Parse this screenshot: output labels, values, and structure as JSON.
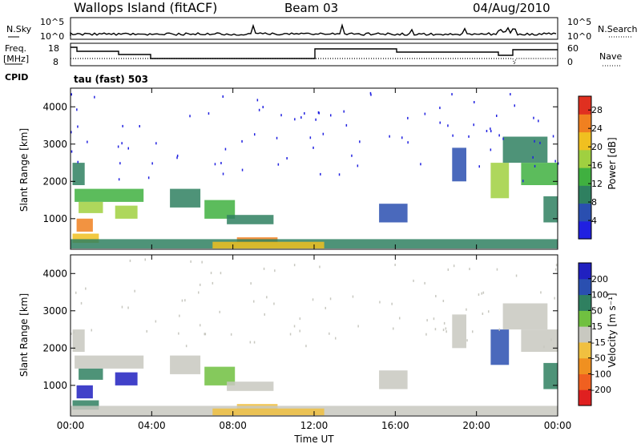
{
  "header": {
    "station": "Wallops Island (fitACF)",
    "beam": "Beam 03",
    "date": "04/Aug/2010"
  },
  "status": {
    "nsky_label": "N.Sky",
    "nsearch_label": "N.Search",
    "freq_label_line1": "Freq.",
    "freq_label_line2": "[MHz]",
    "nave_label": "Nave",
    "cpid_label": "CPID",
    "cpid_value": "tau (fast) 503",
    "nsky_ticks": [
      "10^5",
      "10^0"
    ],
    "nsearch_ticks": [
      "10^5",
      "10^0"
    ],
    "freq_ticks": [
      "18",
      "8"
    ],
    "nave_ticks": [
      "60",
      "0"
    ]
  },
  "colors": {
    "power": [
      "#2020e0",
      "#2a4fb0",
      "#2f8060",
      "#40b040",
      "#a0d040",
      "#f0c020",
      "#f08020",
      "#e03020"
    ],
    "velocity": [
      "#e02020",
      "#f06020",
      "#f09020",
      "#f0c040",
      "#c8c8c0",
      "#70c040",
      "#2f8060",
      "#2a4fb0",
      "#2020c0"
    ]
  },
  "chart_data": [
    {
      "type": "heatmap",
      "title": "",
      "xlabel": "Time UT",
      "ylabel": "Slant Range [km]",
      "x_ticks": [
        "00:00",
        "04:00",
        "08:00",
        "12:00",
        "16:00",
        "20:00",
        "00:00"
      ],
      "x_range_hours": [
        0,
        24
      ],
      "y_ticks": [
        1000,
        2000,
        3000,
        4000
      ],
      "ylim": [
        180,
        4500
      ],
      "colorbar": {
        "label": "Power [dB]",
        "ticks": [
          4,
          8,
          12,
          16,
          20,
          24,
          28
        ],
        "range": [
          0,
          31
        ]
      },
      "patches": [
        {
          "t0": 0.1,
          "t1": 0.7,
          "r0": 1900,
          "r1": 2500,
          "level": 2
        },
        {
          "t0": 0.2,
          "t1": 3.6,
          "r0": 1450,
          "r1": 1800,
          "level": 3
        },
        {
          "t0": 0.4,
          "t1": 1.6,
          "r0": 1150,
          "r1": 1450,
          "level": 4
        },
        {
          "t0": 0.3,
          "t1": 1.1,
          "r0": 650,
          "r1": 1000,
          "level": 6
        },
        {
          "t0": 0.1,
          "t1": 1.4,
          "r0": 350,
          "r1": 600,
          "level": 5
        },
        {
          "t0": 2.2,
          "t1": 3.3,
          "r0": 1000,
          "r1": 1350,
          "level": 4
        },
        {
          "t0": 4.9,
          "t1": 6.4,
          "r0": 1300,
          "r1": 1800,
          "level": 2
        },
        {
          "t0": 6.6,
          "t1": 8.1,
          "r0": 1000,
          "r1": 1500,
          "level": 3
        },
        {
          "t0": 7.7,
          "t1": 10.0,
          "r0": 850,
          "r1": 1100,
          "level": 2
        },
        {
          "t0": 8.2,
          "t1": 10.2,
          "r0": 350,
          "r1": 500,
          "level": 6
        },
        {
          "t0": 0.0,
          "t1": 24.0,
          "r0": 200,
          "r1": 450,
          "level": 2
        },
        {
          "t0": 7.0,
          "t1": 12.5,
          "r0": 200,
          "r1": 380,
          "level": 5
        },
        {
          "t0": 15.2,
          "t1": 16.6,
          "r0": 900,
          "r1": 1400,
          "level": 1
        },
        {
          "t0": 18.8,
          "t1": 19.5,
          "r0": 2000,
          "r1": 2900,
          "level": 1
        },
        {
          "t0": 20.7,
          "t1": 21.6,
          "r0": 1550,
          "r1": 2500,
          "level": 4
        },
        {
          "t0": 21.3,
          "t1": 23.5,
          "r0": 2500,
          "r1": 3200,
          "level": 2
        },
        {
          "t0": 22.2,
          "t1": 24.0,
          "r0": 1900,
          "r1": 2500,
          "level": 3
        },
        {
          "t0": 23.3,
          "t1": 24.0,
          "r0": 900,
          "r1": 1600,
          "level": 2
        }
      ]
    },
    {
      "type": "heatmap",
      "title": "",
      "xlabel": "Time UT",
      "ylabel": "Slant Range [km]",
      "x_ticks": [
        "00:00",
        "04:00",
        "08:00",
        "12:00",
        "16:00",
        "20:00",
        "00:00"
      ],
      "x_range_hours": [
        0,
        24
      ],
      "y_ticks": [
        1000,
        2000,
        3000,
        4000
      ],
      "ylim": [
        180,
        4500
      ],
      "colorbar": {
        "label": "Velocity [m s⁻¹]",
        "ticks": [
          200,
          100,
          50,
          15,
          -15,
          -50,
          -100,
          -200
        ],
        "range": [
          -250,
          250
        ]
      },
      "patches": [
        {
          "t0": 0.1,
          "t1": 0.7,
          "r0": 1900,
          "r1": 2500,
          "level": 4
        },
        {
          "t0": 0.2,
          "t1": 3.6,
          "r0": 1450,
          "r1": 1800,
          "level": 4
        },
        {
          "t0": 0.4,
          "t1": 1.6,
          "r0": 1150,
          "r1": 1450,
          "level": 6
        },
        {
          "t0": 0.3,
          "t1": 1.1,
          "r0": 650,
          "r1": 1000,
          "level": 8
        },
        {
          "t0": 0.1,
          "t1": 1.4,
          "r0": 350,
          "r1": 600,
          "level": 6
        },
        {
          "t0": 2.2,
          "t1": 3.3,
          "r0": 1000,
          "r1": 1350,
          "level": 8
        },
        {
          "t0": 4.9,
          "t1": 6.4,
          "r0": 1300,
          "r1": 1800,
          "level": 4
        },
        {
          "t0": 6.6,
          "t1": 8.1,
          "r0": 1000,
          "r1": 1500,
          "level": 5
        },
        {
          "t0": 7.7,
          "t1": 10.0,
          "r0": 850,
          "r1": 1100,
          "level": 4
        },
        {
          "t0": 8.2,
          "t1": 10.2,
          "r0": 350,
          "r1": 500,
          "level": 3
        },
        {
          "t0": 0.0,
          "t1": 24.0,
          "r0": 200,
          "r1": 450,
          "level": 4
        },
        {
          "t0": 7.0,
          "t1": 12.5,
          "r0": 200,
          "r1": 380,
          "level": 3
        },
        {
          "t0": 15.2,
          "t1": 16.6,
          "r0": 900,
          "r1": 1400,
          "level": 4
        },
        {
          "t0": 18.8,
          "t1": 19.5,
          "r0": 2000,
          "r1": 2900,
          "level": 4
        },
        {
          "t0": 20.7,
          "t1": 21.6,
          "r0": 1550,
          "r1": 2500,
          "level": 7
        },
        {
          "t0": 21.3,
          "t1": 23.5,
          "r0": 2500,
          "r1": 3200,
          "level": 4
        },
        {
          "t0": 22.2,
          "t1": 24.0,
          "r0": 1900,
          "r1": 2500,
          "level": 4
        },
        {
          "t0": 23.3,
          "t1": 24.0,
          "r0": 900,
          "r1": 1600,
          "level": 6
        }
      ]
    }
  ]
}
